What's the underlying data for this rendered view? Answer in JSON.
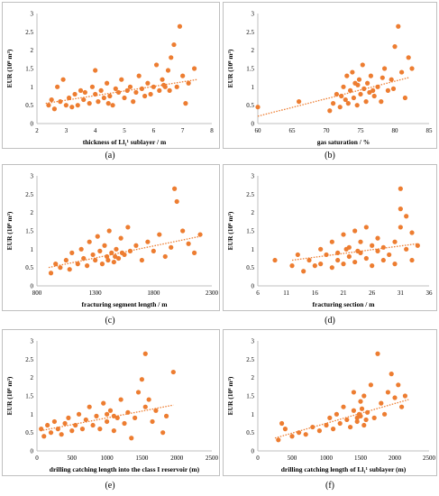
{
  "captions": [
    "(a)",
    "(b)",
    "(c)",
    "(d)",
    "(e)",
    "(f)"
  ],
  "colors": {
    "marker": "#ED7D31",
    "trend": "#ED7D31",
    "axis": "#bfbfbf",
    "text": "#000000"
  },
  "chart_data": [
    {
      "type": "scatter",
      "ylabel": "EUR (10⁸ m³)",
      "xlabel": "thickness of Ll₁¹ sublayer / m",
      "xlim": [
        2,
        8
      ],
      "ylim": [
        0,
        3
      ],
      "xticks": [
        2,
        3,
        4,
        5,
        6,
        7,
        8
      ],
      "yticks": [
        0,
        0.5,
        1,
        1.5,
        2,
        2.5,
        3
      ],
      "ytick_labels": [
        "0",
        "0.5",
        "1",
        "1.5",
        "2",
        "2.5",
        "3"
      ],
      "trendline": [
        [
          2.3,
          0.55
        ],
        [
          7.5,
          1.2
        ]
      ],
      "points": [
        [
          2.4,
          0.5
        ],
        [
          2.5,
          0.65
        ],
        [
          2.6,
          0.4
        ],
        [
          2.7,
          1.0
        ],
        [
          2.8,
          0.6
        ],
        [
          2.9,
          1.2
        ],
        [
          3.0,
          0.5
        ],
        [
          3.1,
          0.7
        ],
        [
          3.2,
          0.45
        ],
        [
          3.3,
          0.8
        ],
        [
          3.4,
          0.5
        ],
        [
          3.5,
          0.9
        ],
        [
          3.6,
          0.65
        ],
        [
          3.8,
          0.55
        ],
        [
          3.9,
          1.0
        ],
        [
          4.0,
          0.8
        ],
        [
          4.0,
          1.45
        ],
        [
          4.1,
          0.6
        ],
        [
          4.2,
          0.9
        ],
        [
          4.3,
          0.7
        ],
        [
          4.4,
          1.1
        ],
        [
          4.5,
          0.75
        ],
        [
          4.6,
          0.5
        ],
        [
          4.7,
          0.95
        ],
        [
          4.8,
          0.85
        ],
        [
          4.9,
          1.2
        ],
        [
          5.0,
          0.7
        ],
        [
          5.1,
          0.9
        ],
        [
          5.2,
          1.0
        ],
        [
          5.3,
          0.6
        ],
        [
          5.4,
          0.85
        ],
        [
          5.5,
          1.3
        ],
        [
          5.6,
          0.95
        ],
        [
          5.7,
          0.75
        ],
        [
          5.8,
          1.1
        ],
        [
          5.9,
          0.8
        ],
        [
          6.0,
          1.0
        ],
        [
          6.1,
          1.6
        ],
        [
          6.2,
          0.9
        ],
        [
          6.3,
          1.2
        ],
        [
          6.4,
          1.0
        ],
        [
          6.5,
          1.45
        ],
        [
          6.6,
          1.8
        ],
        [
          6.7,
          2.15
        ],
        [
          6.8,
          1.0
        ],
        [
          6.9,
          2.65
        ],
        [
          7.0,
          1.3
        ],
        [
          7.1,
          0.55
        ],
        [
          7.2,
          1.1
        ],
        [
          7.4,
          1.5
        ],
        [
          6.35,
          1.05
        ],
        [
          6.55,
          0.9
        ],
        [
          4.45,
          0.55
        ],
        [
          3.65,
          0.85
        ]
      ]
    },
    {
      "type": "scatter",
      "ylabel": "EUR (10⁸ m³)",
      "xlabel": "gas saturation / %",
      "xlim": [
        60,
        85
      ],
      "ylim": [
        0,
        3
      ],
      "xticks": [
        60,
        65,
        70,
        75,
        80,
        85
      ],
      "yticks": [
        0,
        0.5,
        1,
        1.5,
        2,
        2.5,
        3
      ],
      "ytick_labels": [
        "0",
        "0.5",
        "1",
        "1.5",
        "2",
        "2.5",
        "3"
      ],
      "trendline": [
        [
          60,
          0.2
        ],
        [
          82,
          1.25
        ]
      ],
      "points": [
        [
          60,
          0.45
        ],
        [
          66,
          0.6
        ],
        [
          70.5,
          0.35
        ],
        [
          71,
          0.55
        ],
        [
          71.5,
          0.8
        ],
        [
          72,
          0.45
        ],
        [
          72.5,
          1.0
        ],
        [
          72.8,
          0.65
        ],
        [
          73,
          1.3
        ],
        [
          73.2,
          0.55
        ],
        [
          73.5,
          0.9
        ],
        [
          73.8,
          1.4
        ],
        [
          74,
          0.7
        ],
        [
          74.2,
          1.1
        ],
        [
          74.5,
          0.5
        ],
        [
          74.8,
          1.2
        ],
        [
          75,
          0.8
        ],
        [
          75.3,
          1.6
        ],
        [
          75.5,
          0.95
        ],
        [
          75.8,
          0.6
        ],
        [
          76,
          1.1
        ],
        [
          76.3,
          0.85
        ],
        [
          76.5,
          1.3
        ],
        [
          77,
          0.75
        ],
        [
          77.5,
          1.0
        ],
        [
          78,
          0.6
        ],
        [
          78.5,
          1.5
        ],
        [
          79,
          0.9
        ],
        [
          79.5,
          1.2
        ],
        [
          80,
          2.1
        ],
        [
          80.5,
          2.65
        ],
        [
          81,
          1.4
        ],
        [
          81.5,
          0.7
        ],
        [
          82,
          1.8
        ],
        [
          82.5,
          1.5
        ],
        [
          72.2,
          0.75
        ],
        [
          74.6,
          1.05
        ],
        [
          76.8,
          0.9
        ],
        [
          78.2,
          1.25
        ],
        [
          79.8,
          0.95
        ]
      ]
    },
    {
      "type": "scatter",
      "ylabel": "EUR (10⁸ m³)",
      "xlabel": "fracturing segment length / m",
      "xlim": [
        800,
        2300
      ],
      "ylim": [
        0,
        3
      ],
      "xticks": [
        800,
        1300,
        1800,
        2300
      ],
      "yticks": [
        0,
        0.5,
        1,
        1.5,
        2,
        2.5,
        3
      ],
      "ytick_labels": [
        "0",
        "0.5",
        "1",
        "1.5",
        "2",
        "2.5",
        "3"
      ],
      "trendline": [
        [
          900,
          0.5
        ],
        [
          2200,
          1.35
        ]
      ],
      "points": [
        [
          920,
          0.35
        ],
        [
          960,
          0.6
        ],
        [
          1000,
          0.5
        ],
        [
          1050,
          0.7
        ],
        [
          1080,
          0.45
        ],
        [
          1100,
          0.9
        ],
        [
          1150,
          0.6
        ],
        [
          1180,
          1.0
        ],
        [
          1200,
          0.75
        ],
        [
          1230,
          0.55
        ],
        [
          1250,
          1.2
        ],
        [
          1280,
          0.85
        ],
        [
          1300,
          0.7
        ],
        [
          1320,
          1.35
        ],
        [
          1340,
          0.95
        ],
        [
          1360,
          0.6
        ],
        [
          1380,
          1.1
        ],
        [
          1400,
          0.8
        ],
        [
          1420,
          1.5
        ],
        [
          1440,
          0.9
        ],
        [
          1460,
          0.65
        ],
        [
          1480,
          1.0
        ],
        [
          1500,
          0.75
        ],
        [
          1520,
          1.3
        ],
        [
          1550,
          0.85
        ],
        [
          1580,
          1.6
        ],
        [
          1600,
          0.95
        ],
        [
          1650,
          1.1
        ],
        [
          1700,
          0.7
        ],
        [
          1750,
          1.2
        ],
        [
          1800,
          0.95
        ],
        [
          1850,
          1.4
        ],
        [
          1900,
          0.8
        ],
        [
          1950,
          1.05
        ],
        [
          1980,
          2.65
        ],
        [
          2000,
          2.3
        ],
        [
          2050,
          1.5
        ],
        [
          2100,
          1.15
        ],
        [
          2150,
          0.9
        ],
        [
          2200,
          1.4
        ],
        [
          1410,
          0.7
        ],
        [
          1470,
          0.8
        ],
        [
          1530,
          0.9
        ]
      ]
    },
    {
      "type": "scatter",
      "ylabel": "EUR (10⁸ m³)",
      "xlabel": "fracturing section / m",
      "xlim": [
        6,
        36
      ],
      "ylim": [
        0,
        3
      ],
      "xticks": [
        6,
        11,
        16,
        21,
        26,
        31,
        36
      ],
      "yticks": [
        0,
        0.5,
        1,
        1.5,
        2,
        2.5,
        3
      ],
      "ytick_labels": [
        "0",
        "0.5",
        "1",
        "1.5",
        "2",
        "2.5",
        "3"
      ],
      "trendline": [
        [
          12,
          0.7
        ],
        [
          34,
          1.15
        ]
      ],
      "points": [
        [
          9,
          0.7
        ],
        [
          12,
          0.55
        ],
        [
          13,
          0.85
        ],
        [
          14,
          0.4
        ],
        [
          15,
          0.7
        ],
        [
          16,
          0.55
        ],
        [
          17,
          1.0
        ],
        [
          17,
          0.6
        ],
        [
          18,
          0.85
        ],
        [
          19,
          1.2
        ],
        [
          19,
          0.5
        ],
        [
          20,
          0.9
        ],
        [
          20,
          0.7
        ],
        [
          21,
          1.4
        ],
        [
          21,
          0.6
        ],
        [
          22,
          1.05
        ],
        [
          22,
          0.8
        ],
        [
          23,
          1.5
        ],
        [
          23,
          0.65
        ],
        [
          24,
          1.2
        ],
        [
          24,
          0.9
        ],
        [
          25,
          1.6
        ],
        [
          25,
          0.75
        ],
        [
          26,
          1.1
        ],
        [
          26,
          0.55
        ],
        [
          27,
          0.95
        ],
        [
          27,
          1.3
        ],
        [
          28,
          0.7
        ],
        [
          28,
          1.05
        ],
        [
          29,
          0.85
        ],
        [
          30,
          1.2
        ],
        [
          30,
          0.6
        ],
        [
          31,
          2.65
        ],
        [
          31,
          2.1
        ],
        [
          31,
          1.6
        ],
        [
          32,
          1.9
        ],
        [
          32,
          1.0
        ],
        [
          33,
          1.45
        ],
        [
          33,
          0.7
        ],
        [
          34,
          1.1
        ],
        [
          21.5,
          1.0
        ],
        [
          23.5,
          0.95
        ]
      ]
    },
    {
      "type": "scatter",
      "ylabel": "EUR (10⁸ m³)",
      "xlabel": "drilling catching length into the class I reservoir (m)",
      "xlim": [
        0,
        2500
      ],
      "ylim": [
        0,
        3
      ],
      "xticks": [
        0,
        500,
        1000,
        1500,
        2000,
        2500
      ],
      "yticks": [
        0,
        0.5,
        1,
        1.5,
        2,
        2.5,
        3
      ],
      "ytick_labels": [
        "0",
        "0.5",
        "1",
        "1.5",
        "2",
        "2.5",
        "3"
      ],
      "trendline": [
        [
          50,
          0.55
        ],
        [
          1950,
          1.25
        ]
      ],
      "points": [
        [
          60,
          0.6
        ],
        [
          100,
          0.4
        ],
        [
          150,
          0.7
        ],
        [
          200,
          0.5
        ],
        [
          250,
          0.8
        ],
        [
          300,
          0.6
        ],
        [
          350,
          0.45
        ],
        [
          400,
          0.75
        ],
        [
          450,
          0.9
        ],
        [
          500,
          0.55
        ],
        [
          550,
          0.7
        ],
        [
          600,
          1.0
        ],
        [
          650,
          0.6
        ],
        [
          700,
          0.85
        ],
        [
          750,
          1.2
        ],
        [
          800,
          0.7
        ],
        [
          850,
          0.95
        ],
        [
          900,
          0.6
        ],
        [
          950,
          1.3
        ],
        [
          1000,
          0.8
        ],
        [
          1050,
          1.1
        ],
        [
          1100,
          0.55
        ],
        [
          1150,
          0.9
        ],
        [
          1200,
          1.4
        ],
        [
          1250,
          0.75
        ],
        [
          1300,
          1.05
        ],
        [
          1350,
          0.35
        ],
        [
          1400,
          0.9
        ],
        [
          1450,
          1.6
        ],
        [
          1500,
          1.95
        ],
        [
          1550,
          2.65
        ],
        [
          1550,
          1.2
        ],
        [
          1600,
          1.4
        ],
        [
          1650,
          0.8
        ],
        [
          1700,
          1.1
        ],
        [
          1800,
          0.5
        ],
        [
          1850,
          0.95
        ],
        [
          1950,
          2.15
        ],
        [
          1000,
          1.0
        ],
        [
          1100,
          0.95
        ]
      ]
    },
    {
      "type": "scatter",
      "ylabel": "EUR (10⁸ m³)",
      "xlabel": "drilling catching length of Ll₁¹ sublayer  (m)",
      "xlim": [
        0,
        2500
      ],
      "ylim": [
        0,
        3
      ],
      "xticks": [
        0,
        500,
        1000,
        1500,
        2000,
        2500
      ],
      "yticks": [
        0,
        0.5,
        1,
        1.5,
        2,
        2.5,
        3
      ],
      "ytick_labels": [
        "0",
        "0.5",
        "1",
        "1.5",
        "2",
        "2.5",
        "3"
      ],
      "trendline": [
        [
          250,
          0.35
        ],
        [
          2200,
          1.4
        ]
      ],
      "points": [
        [
          300,
          0.3
        ],
        [
          350,
          0.75
        ],
        [
          400,
          0.6
        ],
        [
          500,
          0.4
        ],
        [
          600,
          0.5
        ],
        [
          700,
          0.45
        ],
        [
          800,
          0.65
        ],
        [
          900,
          0.55
        ],
        [
          1000,
          0.7
        ],
        [
          1050,
          0.9
        ],
        [
          1100,
          0.6
        ],
        [
          1150,
          1.0
        ],
        [
          1200,
          0.75
        ],
        [
          1250,
          1.2
        ],
        [
          1300,
          0.85
        ],
        [
          1350,
          0.65
        ],
        [
          1400,
          1.1
        ],
        [
          1400,
          1.6
        ],
        [
          1450,
          0.8
        ],
        [
          1500,
          1.35
        ],
        [
          1500,
          0.95
        ],
        [
          1550,
          1.5
        ],
        [
          1550,
          0.7
        ],
        [
          1600,
          1.05
        ],
        [
          1650,
          1.8
        ],
        [
          1700,
          0.9
        ],
        [
          1750,
          2.65
        ],
        [
          1800,
          1.3
        ],
        [
          1850,
          1.0
        ],
        [
          1900,
          1.6
        ],
        [
          1950,
          2.1
        ],
        [
          2000,
          1.45
        ],
        [
          2050,
          1.8
        ],
        [
          2100,
          1.2
        ],
        [
          2150,
          1.5
        ],
        [
          1450,
          0.9
        ],
        [
          1520,
          1.15
        ],
        [
          1580,
          0.85
        ],
        [
          1480,
          1.0
        ]
      ]
    }
  ]
}
